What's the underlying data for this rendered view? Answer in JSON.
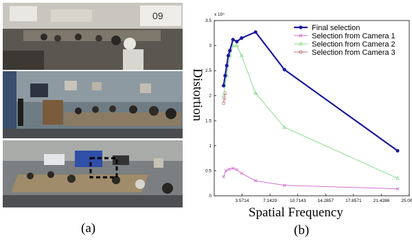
{
  "panels": {
    "a_caption": "(a)",
    "b_caption": "(b)",
    "top_logo_text": "09"
  },
  "chart_data": {
    "type": "line",
    "title": "",
    "xlabel": "Spatial Frequency",
    "ylabel": "Distortion",
    "y_exponent_label": "x 10⁵",
    "xlim": [
      0,
      25
    ],
    "ylim": [
      0,
      3.5
    ],
    "x_ticks": [
      "3.5714",
      "7.1429",
      "10.7143",
      "14.2857",
      "17.8571",
      "21.4286",
      "25.0000"
    ],
    "x_tick_values": [
      3.5714,
      7.1429,
      10.7143,
      14.2857,
      17.8571,
      21.4286,
      25.0
    ],
    "y_ticks": [
      "0",
      "0.5",
      "1",
      "1.5",
      "2",
      "2.5",
      "3",
      "3.5"
    ],
    "y_tick_values": [
      0,
      0.5,
      1,
      1.5,
      2,
      2.5,
      3,
      3.5
    ],
    "legend_position": "top-right",
    "series": [
      {
        "name": "Final selection",
        "color": "#1a1a9e",
        "marker": "dot",
        "x": [
          1.2,
          1.4,
          1.6,
          1.8,
          2.0,
          2.4,
          2.9,
          3.5,
          5.3,
          9.0,
          23.5
        ],
        "y": [
          2.2,
          2.4,
          2.6,
          2.8,
          2.9,
          3.12,
          3.08,
          3.15,
          3.27,
          2.52,
          0.9
        ]
      },
      {
        "name": "Selection from Camera 1",
        "color": "#d070d0",
        "marker": "x",
        "x": [
          1.2,
          1.5,
          1.9,
          2.4,
          2.9,
          3.5,
          5.3,
          9.0,
          23.5
        ],
        "y": [
          0.38,
          0.5,
          0.53,
          0.55,
          0.52,
          0.45,
          0.3,
          0.21,
          0.14
        ]
      },
      {
        "name": "Selection from Camera 2",
        "color": "#88dd88",
        "marker": "triangle",
        "x": [
          1.2,
          1.6,
          2.0,
          2.4,
          2.9,
          3.5,
          5.3,
          9.0,
          23.5
        ],
        "y": [
          2.0,
          2.4,
          2.8,
          3.0,
          3.0,
          2.8,
          2.05,
          1.37,
          0.35
        ]
      },
      {
        "name": "Selection from Camera 3",
        "color": "#c87070",
        "marker": "circle",
        "x": [
          1.2,
          1.3,
          1.4
        ],
        "y": [
          1.85,
          1.95,
          2.05
        ]
      }
    ]
  }
}
